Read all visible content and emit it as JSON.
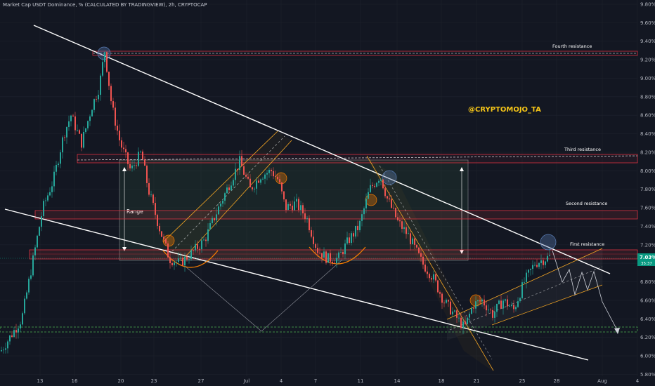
{
  "header": {
    "title": "Market Cap USDT Dominance, % (CALCULATED BY TRADINGVIEW), 2h, CRYPTOCAP"
  },
  "price_label": {
    "value": "7.03%",
    "countdown": "35:37",
    "color": "#089981"
  },
  "watermark": "@CRYPTOMOJO_TA",
  "levels": [
    {
      "label": "Fourth resistance",
      "value": 9.26
    },
    {
      "label": "Third resistance",
      "value": 8.13
    },
    {
      "label": "Second resistance",
      "value": 7.5
    },
    {
      "label": "First resistance",
      "value": 7.07
    }
  ],
  "support_value": 6.22,
  "range_label": "Range",
  "colors": {
    "up": "#26a69a",
    "down": "#ef5350",
    "background": "#131722",
    "resistance": "#f23645",
    "support": "#4caf50",
    "channel": "#f5a623",
    "trend": "#ffffff"
  },
  "chart_data": {
    "type": "candlestick",
    "title": "Market Cap USDT Dominance, % (CALCULATED BY TRADINGVIEW), 2h, CRYPTOCAP",
    "ylim": [
      5.75,
      9.8
    ],
    "yticks": [
      "9.80%",
      "9.60%",
      "9.40%",
      "9.20%",
      "9.00%",
      "8.80%",
      "8.60%",
      "8.40%",
      "8.20%",
      "8.00%",
      "7.80%",
      "7.60%",
      "7.40%",
      "7.20%",
      "7.00%",
      "6.80%",
      "6.60%",
      "6.40%",
      "6.20%",
      "6.00%",
      "5.80%"
    ],
    "xtick_labels": [
      "13",
      "16",
      "20",
      "23",
      "27",
      "Jul",
      "4",
      "7",
      "11",
      "14",
      "18",
      "21",
      "25",
      "28",
      "Aug",
      "4"
    ],
    "approx_path": [
      [
        0,
        6.05
      ],
      [
        30,
        6.4
      ],
      [
        45,
        7.0
      ],
      [
        60,
        7.6
      ],
      [
        75,
        7.9
      ],
      [
        90,
        8.4
      ],
      [
        100,
        8.6
      ],
      [
        115,
        8.3
      ],
      [
        130,
        8.7
      ],
      [
        140,
        8.9
      ],
      [
        148,
        9.3
      ],
      [
        158,
        8.7
      ],
      [
        170,
        8.3
      ],
      [
        185,
        8.0
      ],
      [
        200,
        8.2
      ],
      [
        210,
        7.8
      ],
      [
        225,
        7.4
      ],
      [
        240,
        7.05
      ],
      [
        255,
        7.0
      ],
      [
        270,
        7.1
      ],
      [
        290,
        7.25
      ],
      [
        310,
        7.6
      ],
      [
        325,
        7.85
      ],
      [
        340,
        8.1
      ],
      [
        355,
        7.8
      ],
      [
        370,
        7.95
      ],
      [
        385,
        8.0
      ],
      [
        395,
        7.9
      ],
      [
        405,
        7.6
      ],
      [
        420,
        7.65
      ],
      [
        435,
        7.5
      ],
      [
        450,
        7.15
      ],
      [
        465,
        7.05
      ],
      [
        480,
        7.05
      ],
      [
        495,
        7.25
      ],
      [
        510,
        7.4
      ],
      [
        525,
        7.8
      ],
      [
        540,
        7.95
      ],
      [
        550,
        7.7
      ],
      [
        565,
        7.45
      ],
      [
        580,
        7.3
      ],
      [
        600,
        7.0
      ],
      [
        615,
        6.85
      ],
      [
        630,
        6.6
      ],
      [
        645,
        6.45
      ],
      [
        660,
        6.3
      ],
      [
        672,
        6.55
      ],
      [
        685,
        6.6
      ],
      [
        700,
        6.45
      ],
      [
        715,
        6.6
      ],
      [
        730,
        6.5
      ],
      [
        745,
        6.8
      ],
      [
        760,
        7.0
      ],
      [
        775,
        7.05
      ],
      [
        783,
        7.08
      ]
    ]
  }
}
